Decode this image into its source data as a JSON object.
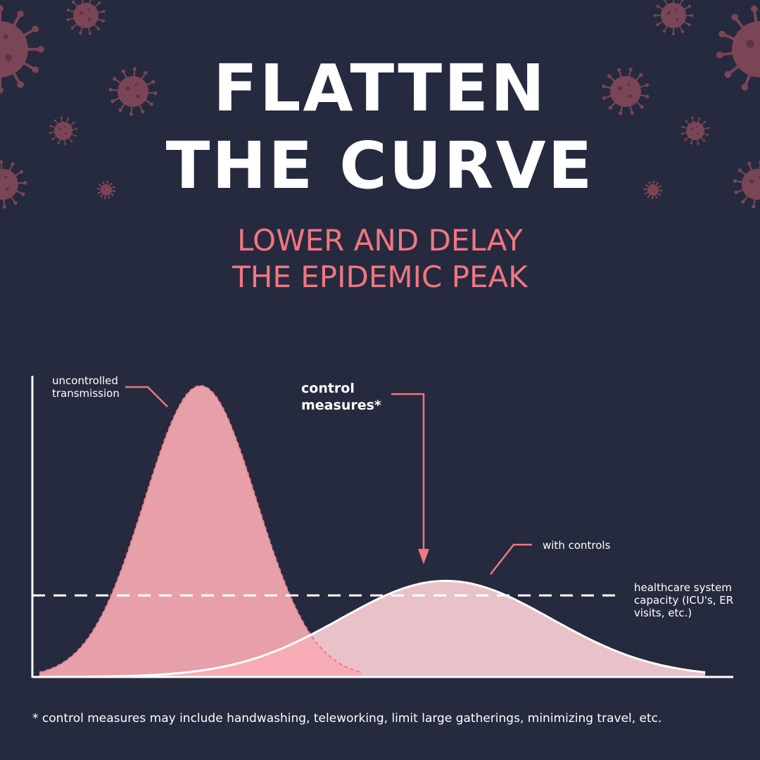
{
  "title_line1": "FLATTEN",
  "title_line2": "THE CURVE",
  "subtitle_line1": "LOWER AND DELAY",
  "subtitle_line2": "THE EPIDEMIC PEAK",
  "footnote": "* control measures may include handwashing, teleworking, limit large gatherings, minimizing travel, etc.",
  "colors": {
    "background": "#252a3e",
    "accent": "#f07680",
    "uncontrolled_fill": "#f7a9b3",
    "controlled_fill": "#f3c9d1",
    "virus": "#7a4555"
  },
  "chart_data": {
    "type": "area",
    "x_range": [
      0,
      100
    ],
    "y_range": [
      0,
      100
    ],
    "grid": false,
    "series": [
      {
        "name": "uncontrolled\ntransmission",
        "peak_x": 24,
        "peak_y": 100,
        "spread": 8,
        "style": "dashed outline",
        "color": "#f7a9b3"
      },
      {
        "name": "with controls",
        "peak_x": 59,
        "peak_y": 33,
        "spread": 15,
        "style": "solid white outline",
        "color": "#f3c9d1"
      }
    ],
    "threshold": {
      "label": "healthcare system\ncapacity (ICU's, ER\nvisits, etc.)",
      "y": 28,
      "style": "dashed"
    },
    "annotation": {
      "text": "control\nmeasures*",
      "points_to": "with controls peak"
    }
  }
}
